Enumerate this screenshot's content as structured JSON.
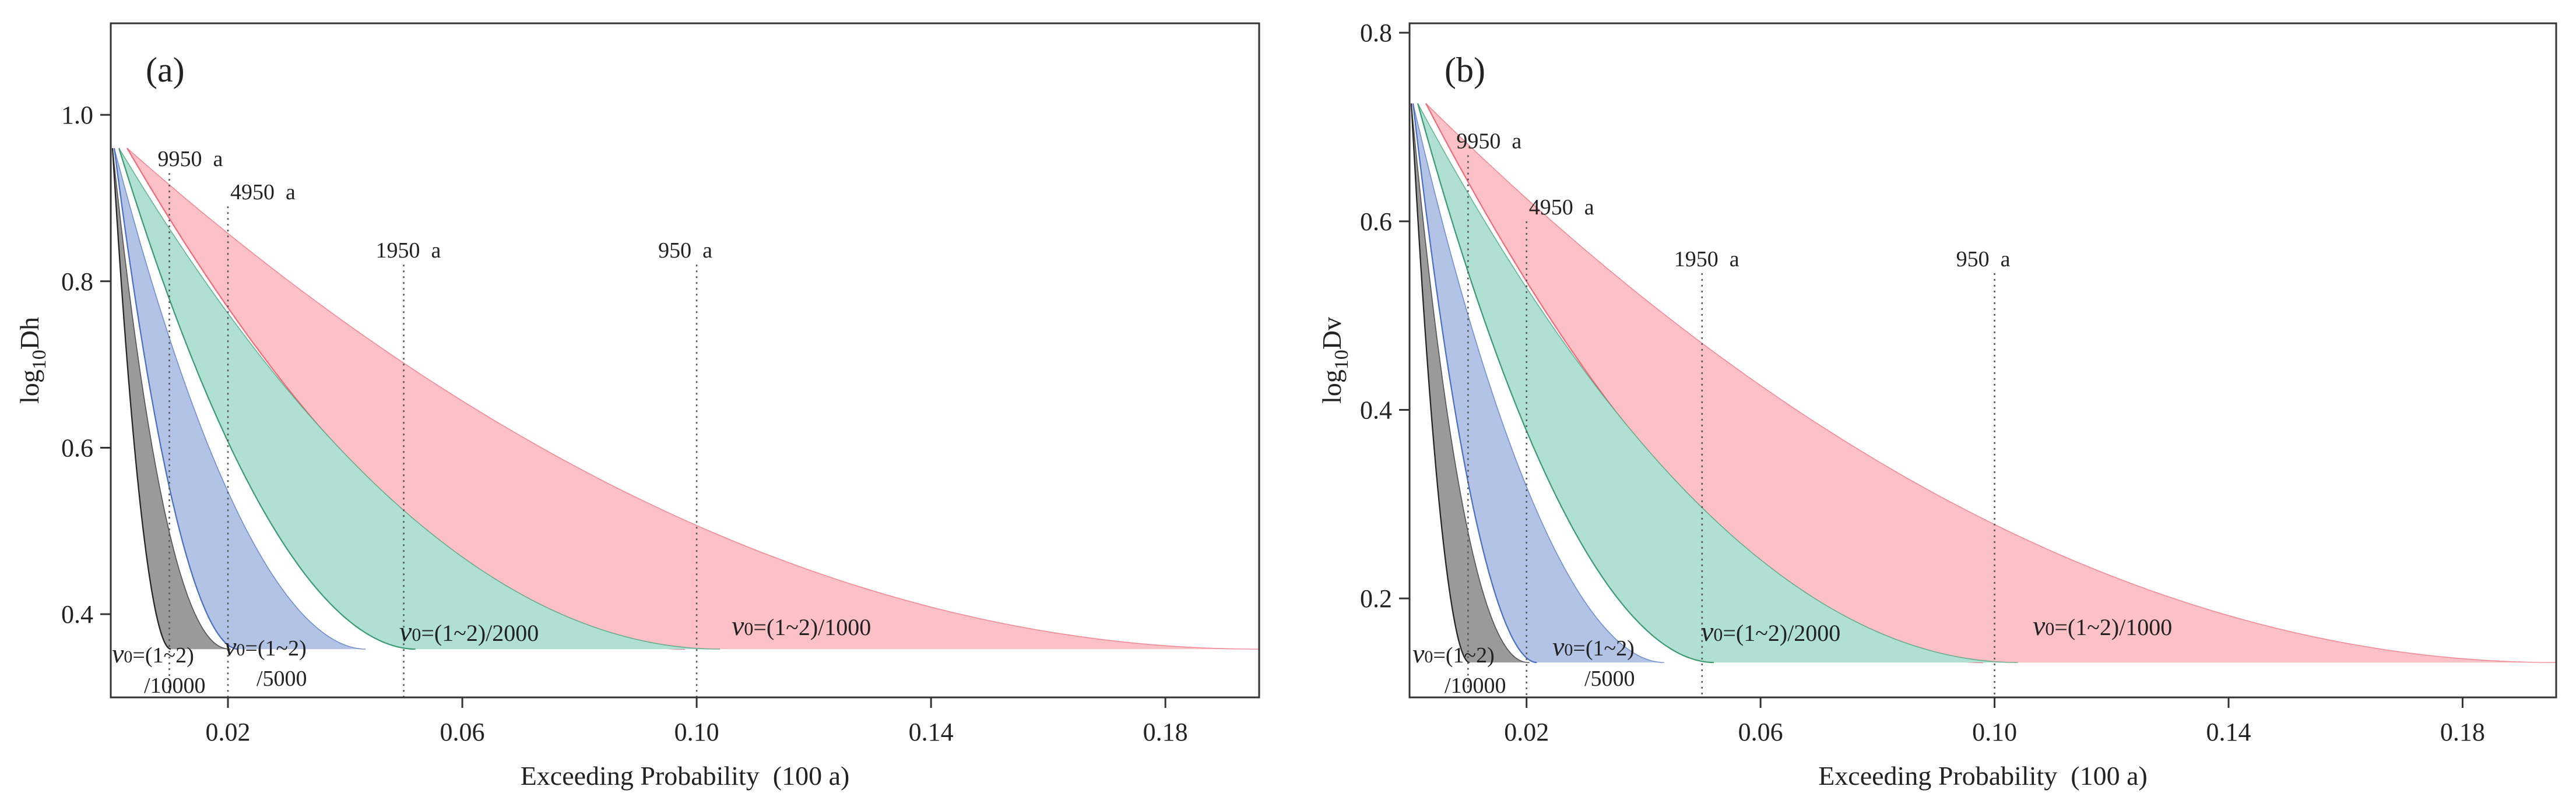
{
  "chart_data": [
    {
      "type": "area",
      "panel_label": "(a)",
      "xlabel": "Exceeding Probability  (100 a)",
      "ylabel_base": "log",
      "ylabel_sub": "10",
      "ylabel_var": "Dh",
      "xlim": [
        0,
        0.196
      ],
      "ylim": [
        0.3,
        1.11
      ],
      "xticks": [
        0.02,
        0.06,
        0.1,
        0.14,
        0.18
      ],
      "xtick_labels": [
        "0.02",
        "0.06",
        "0.10",
        "0.14",
        "0.18"
      ],
      "yticks": [
        0.4,
        0.6,
        0.8,
        1.0
      ],
      "ytick_labels": [
        "0.4",
        "0.6",
        "0.8",
        "1.0"
      ],
      "return_periods": [
        {
          "x": 0.01,
          "top": 0.93,
          "label": "9950  a"
        },
        {
          "x": 0.02,
          "top": 0.89,
          "label": "4950  a"
        },
        {
          "x": 0.05,
          "top": 0.82,
          "label": "1950  a"
        },
        {
          "x": 0.1,
          "top": 0.82,
          "label": "950  a"
        }
      ],
      "series": [
        {
          "name": "v0=(1~2)/1000",
          "color": "#fcc0c7",
          "edge": "#f06a78",
          "x_min": 0.0028,
          "x_max": 0.196,
          "y_top": 0.96,
          "y_bottom": 0.358,
          "k_lower": 0.5,
          "k_upper": 0.52,
          "label_lines": [
            "v0=(1~2)/1000"
          ]
        },
        {
          "name": "v0=(1~2)/2000",
          "color": "#b0e0d4",
          "edge": "#3a9a70",
          "x_min": 0.0014,
          "x_max": 0.104,
          "y_top": 0.96,
          "y_bottom": 0.358,
          "k_lower": 0.5,
          "k_upper": 0.52,
          "label_lines": [
            "v0=(1~2)/2000"
          ]
        },
        {
          "name": "v0=(1~2)/5000",
          "color": "#b3c3e6",
          "edge": "#4a6fc2",
          "x_min": 0.0006,
          "x_max": 0.0435,
          "y_top": 0.96,
          "y_bottom": 0.358,
          "k_lower": 0.52,
          "k_upper": 0.52,
          "label_lines": [
            "v0=(1~2)",
            "/5000"
          ]
        },
        {
          "name": "v0=(1~2)/10000",
          "color": "#9a9a9a",
          "edge": "#222222",
          "x_min": 0.0003,
          "x_max": 0.0205,
          "y_top": 0.96,
          "y_bottom": 0.358,
          "k_lower": 0.45,
          "k_upper": 0.52,
          "label_lines": [
            "v0=(1~2)",
            "/10000"
          ]
        }
      ]
    },
    {
      "type": "area",
      "panel_label": "(b)",
      "xlabel": "Exceeding Probability  (100 a)",
      "ylabel_base": "log",
      "ylabel_sub": "10",
      "ylabel_var": "Dv",
      "xlim": [
        0,
        0.196
      ],
      "ylim": [
        0.095,
        0.81
      ],
      "xticks": [
        0.02,
        0.06,
        0.1,
        0.14,
        0.18
      ],
      "xtick_labels": [
        "0.02",
        "0.06",
        "0.10",
        "0.14",
        "0.18"
      ],
      "yticks": [
        0.2,
        0.4,
        0.6,
        0.8
      ],
      "ytick_labels": [
        "0.2",
        "0.4",
        "0.6",
        "0.8"
      ],
      "return_periods": [
        {
          "x": 0.01,
          "top": 0.67,
          "label": "9950  a"
        },
        {
          "x": 0.02,
          "top": 0.6,
          "label": "4950  a"
        },
        {
          "x": 0.05,
          "top": 0.545,
          "label": "1950  a"
        },
        {
          "x": 0.1,
          "top": 0.545,
          "label": "950  a"
        }
      ],
      "series": [
        {
          "name": "v0=(1~2)/1000",
          "color": "#fcc0c7",
          "edge": "#f06a78",
          "x_min": 0.0028,
          "x_max": 0.196,
          "y_top": 0.725,
          "y_bottom": 0.132,
          "k_lower": 0.5,
          "k_upper": 0.52,
          "label_lines": [
            "v0=(1~2)/1000"
          ]
        },
        {
          "name": "v0=(1~2)/2000",
          "color": "#b0e0d4",
          "edge": "#3a9a70",
          "x_min": 0.0014,
          "x_max": 0.104,
          "y_top": 0.725,
          "y_bottom": 0.132,
          "k_lower": 0.5,
          "k_upper": 0.52,
          "label_lines": [
            "v0=(1~2)/2000"
          ]
        },
        {
          "name": "v0=(1~2)/5000",
          "color": "#b3c3e6",
          "edge": "#4a6fc2",
          "x_min": 0.0006,
          "x_max": 0.0435,
          "y_top": 0.725,
          "y_bottom": 0.132,
          "k_lower": 0.52,
          "k_upper": 0.52,
          "label_lines": [
            "v0=(1~2)",
            "/5000"
          ]
        },
        {
          "name": "v0=(1~2)/10000",
          "color": "#9a9a9a",
          "edge": "#222222",
          "x_min": 0.0003,
          "x_max": 0.0205,
          "y_top": 0.725,
          "y_bottom": 0.132,
          "k_lower": 0.45,
          "k_upper": 0.52,
          "label_lines": [
            "v0=(1~2)",
            "/10000"
          ]
        }
      ]
    }
  ]
}
